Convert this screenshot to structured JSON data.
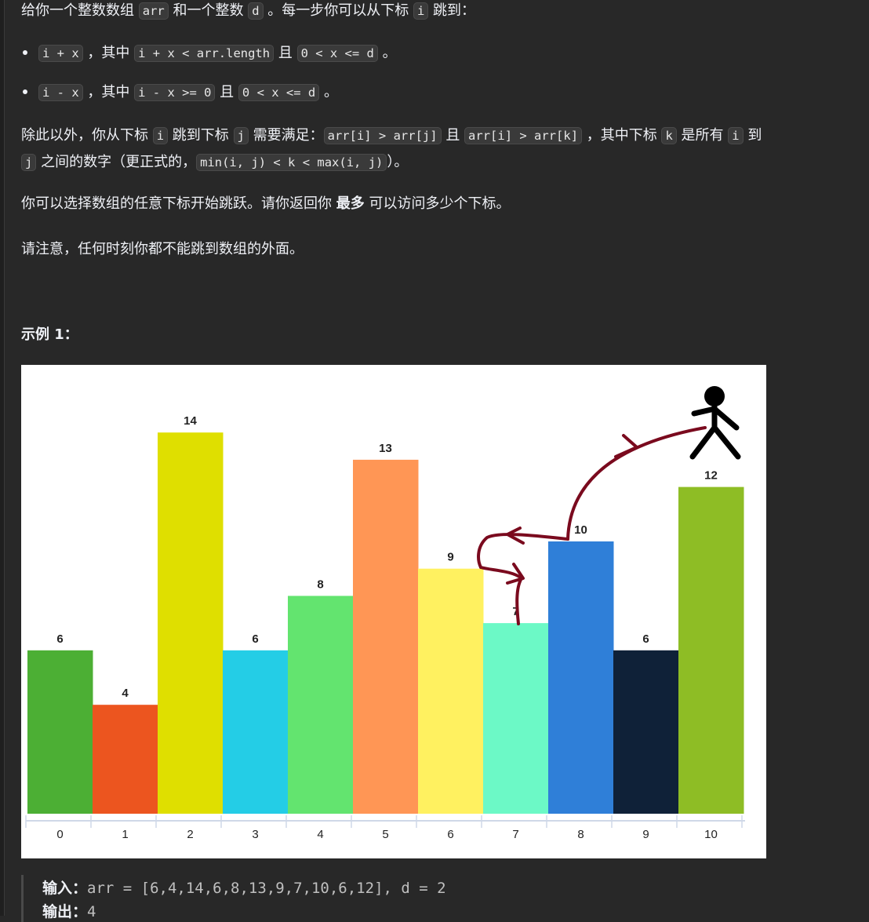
{
  "description": {
    "line1": {
      "t1": "给你一个整数数组 ",
      "c1": "arr",
      "t2": " 和一个整数 ",
      "c2": "d",
      "t3": " 。每一步你可以从下标 ",
      "c3": "i",
      "t4": " 跳到："
    },
    "bullet1": {
      "c1": "i + x",
      "t1": " ，其中 ",
      "c2": "i + x < arr.length",
      "t2": " 且 ",
      "c3": "0 < x <= d",
      "t3": " 。"
    },
    "bullet2": {
      "c1": "i - x",
      "t1": " ，其中 ",
      "c2": "i - x >= 0",
      "t2": " 且 ",
      "c3": "0 < x <= d",
      "t3": " 。"
    },
    "para2a": {
      "t1": "除此以外，你从下标 ",
      "c1": "i",
      "t2": " 跳到下标 ",
      "c2": "j",
      "t3": " 需要满足：",
      "c3": "arr[i] > arr[j]",
      "t4": " 且 ",
      "c4": "arr[i] > arr[k]",
      "t5": " ，其中下标 ",
      "c5": "k",
      "t6": " 是所有 ",
      "c6": "i",
      "t7": " 到"
    },
    "para2b": {
      "c1": "j",
      "t1": " 之间的数字（更正式的，",
      "c2": "min(i, j) < k < max(i, j)",
      "t2": "）。"
    },
    "para3": {
      "t1": "你可以选择数组的任意下标开始跳跃。请你返回你 ",
      "b1": "最多",
      "t2": " 可以访问多少个下标。"
    },
    "para4": "请注意，任何时刻你都不能跳到数组的外面。"
  },
  "example": {
    "title": "示例 1：",
    "input_label": "输入：",
    "input_value": "arr = [6,4,14,6,8,13,9,7,10,6,12], d = 2",
    "output_label": "输出：",
    "output_value": "4"
  },
  "chart_data": {
    "type": "bar",
    "categories": [
      "0",
      "1",
      "2",
      "3",
      "4",
      "5",
      "6",
      "7",
      "8",
      "9",
      "10"
    ],
    "values": [
      6,
      4,
      14,
      6,
      8,
      13,
      9,
      7,
      10,
      6,
      12
    ],
    "colors": [
      "#4caf34",
      "#ec551f",
      "#dfdf00",
      "#24cde6",
      "#63e46f",
      "#ff9655",
      "#fff160",
      "#6cf9c6",
      "#2f7fd8",
      "#0f2138",
      "#8ebd25"
    ],
    "ylim": [
      0,
      14
    ],
    "annotation": "jump path: 10 -> 8 -> 6 -> 7",
    "arrow_color": "#7a0a1e",
    "icon": "stick-figure-icon"
  }
}
